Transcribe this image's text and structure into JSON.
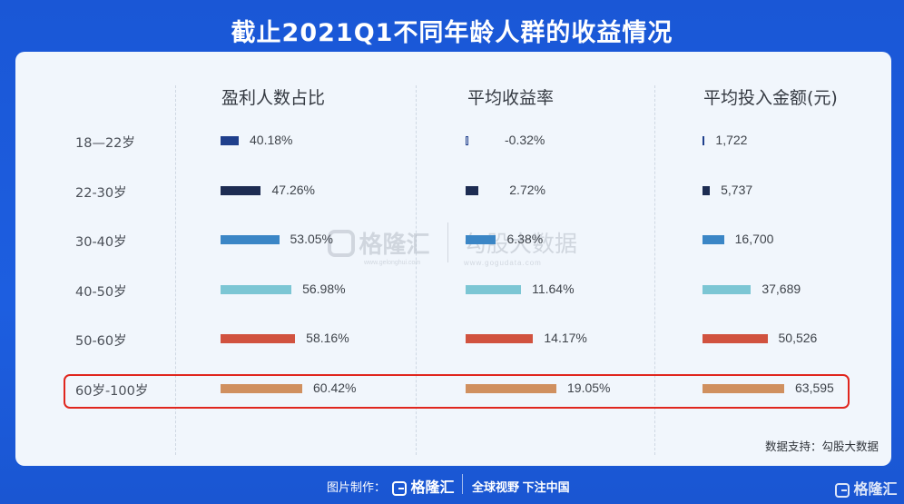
{
  "title": "截止2021Q1不同年龄人群的收益情况",
  "chart_data": {
    "type": "table",
    "categories": [
      "18—22岁",
      "22-30岁",
      "30-40岁",
      "40-50岁",
      "50-60岁",
      "60岁-100岁"
    ],
    "columns": [
      {
        "name": "盈利人数占比",
        "values": [
          40.18,
          47.26,
          53.05,
          56.98,
          58.16,
          60.42
        ],
        "labels": [
          "40.18%",
          "47.26%",
          "53.05%",
          "56.98%",
          "58.16%",
          "60.42%"
        ]
      },
      {
        "name": "平均收益率",
        "values": [
          -0.32,
          2.72,
          6.38,
          11.64,
          14.17,
          19.05
        ],
        "labels": [
          "-0.32%",
          "2.72%",
          "6.38%",
          "11.64%",
          "14.17%",
          "19.05%"
        ]
      },
      {
        "name": "平均投入金额(元)",
        "values": [
          1722,
          5737,
          16700,
          37689,
          50526,
          63595
        ],
        "labels": [
          "1,722",
          "5,737",
          "16,700",
          "37,689",
          "50,526",
          "63,595"
        ]
      }
    ],
    "row_colors": [
      "#1f3f8c",
      "#1d2c52",
      "#3b86c6",
      "#7cc6d4",
      "#d1523f",
      "#d0905f"
    ],
    "highlighted_row": "60岁-100岁"
  },
  "watermarks": {
    "gelonghui_name": "格隆汇",
    "gelonghui_url": "www.gelonghui.com",
    "gogudata_name": "勾股大数据",
    "gogudata_url": "www.gogudata.com"
  },
  "source_note": "数据支持：勾股大数据",
  "footer": {
    "made_by": "图片制作：",
    "brand": "格隆汇",
    "slogan": "全球视野 下注中国",
    "corner_brand": "格隆汇"
  }
}
